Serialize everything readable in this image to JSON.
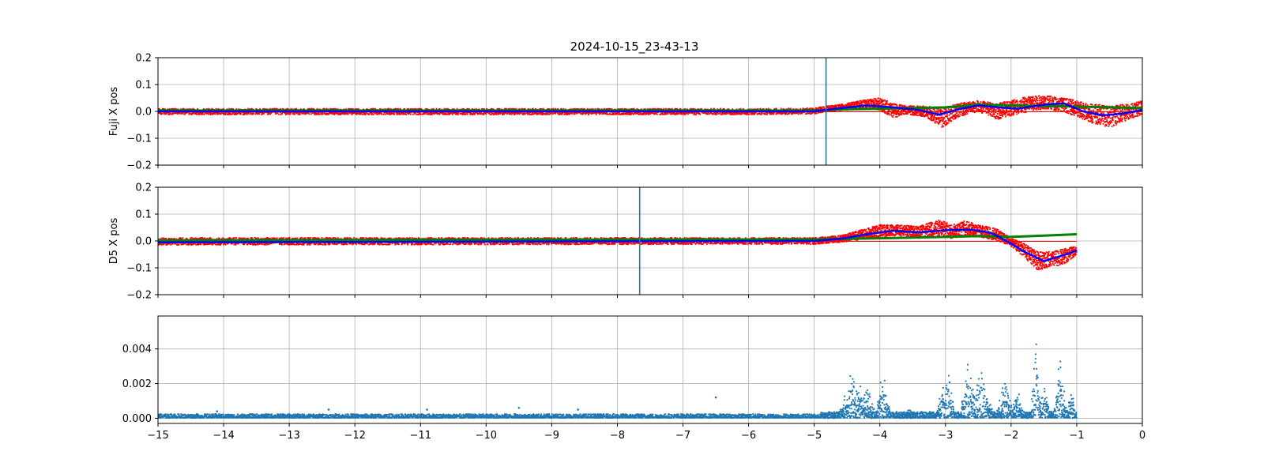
{
  "chart_data": {
    "type": "scatter",
    "title": "2024-10-15_23-43-13",
    "colors": {
      "raw": "#ff0000",
      "smooth": "#0000ff",
      "reference": "#008000",
      "marker": "#1f77b4",
      "scatter": "#1f77b4",
      "grid": "#b0b0b0"
    },
    "x_axis": {
      "xlim": [
        -15,
        0
      ],
      "ticks": [
        -15,
        -14,
        -13,
        -12,
        -11,
        -10,
        -9,
        -8,
        -7,
        -6,
        -5,
        -4,
        -3,
        -2,
        -1,
        0
      ],
      "tick_labels": [
        "−15",
        "−14",
        "−13",
        "−12",
        "−11",
        "−10",
        "−9",
        "−8",
        "−7",
        "−6",
        "−5",
        "−4",
        "−3",
        "−2",
        "−1",
        "0"
      ]
    },
    "panels": [
      {
        "id": "fuji",
        "ylabel": "Fuji X pos",
        "ylim": [
          -0.2,
          0.2
        ],
        "yticks": [
          0.2,
          0.1,
          0.0,
          -0.1,
          -0.2
        ],
        "ytick_labels": [
          "0.2",
          "0.1",
          "0.0",
          "−0.1",
          "−0.2"
        ],
        "show_x_tick_labels": false,
        "vline_x": -4.82,
        "x_end": 0,
        "raw_series": {
          "name": "raw (red)",
          "envelope": [
            {
              "x": -15.0,
              "lo": -0.012,
              "hi": 0.01
            },
            {
              "x": -6.0,
              "lo": -0.012,
              "hi": 0.01
            },
            {
              "x": -5.0,
              "lo": -0.01,
              "hi": 0.012
            },
            {
              "x": -4.8,
              "lo": 0.0,
              "hi": 0.02
            },
            {
              "x": -4.5,
              "lo": 0.005,
              "hi": 0.03
            },
            {
              "x": -4.3,
              "lo": 0.01,
              "hi": 0.04
            },
            {
              "x": -4.0,
              "lo": 0.005,
              "hi": 0.05
            },
            {
              "x": -3.8,
              "lo": -0.025,
              "hi": 0.03
            },
            {
              "x": -3.6,
              "lo": -0.01,
              "hi": 0.02
            },
            {
              "x": -3.3,
              "lo": -0.02,
              "hi": 0.02
            },
            {
              "x": -3.05,
              "lo": -0.06,
              "hi": 0.01
            },
            {
              "x": -2.8,
              "lo": -0.02,
              "hi": 0.03
            },
            {
              "x": -2.5,
              "lo": 0.0,
              "hi": 0.04
            },
            {
              "x": -2.2,
              "lo": -0.03,
              "hi": 0.03
            },
            {
              "x": -1.9,
              "lo": -0.01,
              "hi": 0.05
            },
            {
              "x": -1.5,
              "lo": 0.01,
              "hi": 0.06
            },
            {
              "x": -1.2,
              "lo": 0.0,
              "hi": 0.05
            },
            {
              "x": -0.8,
              "lo": -0.04,
              "hi": 0.03
            },
            {
              "x": -0.5,
              "lo": -0.06,
              "hi": 0.02
            },
            {
              "x": -0.2,
              "lo": -0.03,
              "hi": 0.03
            },
            {
              "x": 0.0,
              "lo": -0.01,
              "hi": 0.04
            }
          ]
        },
        "smooth_series": {
          "name": "smoothed (blue)",
          "points": [
            {
              "x": -15,
              "y": 0.0
            },
            {
              "x": -5,
              "y": 0.0
            },
            {
              "x": -4.6,
              "y": 0.012
            },
            {
              "x": -4.2,
              "y": 0.022
            },
            {
              "x": -3.8,
              "y": 0.015
            },
            {
              "x": -3.4,
              "y": 0.005
            },
            {
              "x": -3.1,
              "y": -0.012
            },
            {
              "x": -2.8,
              "y": 0.008
            },
            {
              "x": -2.5,
              "y": 0.022
            },
            {
              "x": -2.2,
              "y": 0.015
            },
            {
              "x": -1.9,
              "y": 0.01
            },
            {
              "x": -1.5,
              "y": 0.025
            },
            {
              "x": -1.2,
              "y": 0.03
            },
            {
              "x": -0.9,
              "y": 0.0
            },
            {
              "x": -0.6,
              "y": -0.015
            },
            {
              "x": -0.3,
              "y": -0.008
            },
            {
              "x": 0.0,
              "y": 0.005
            }
          ]
        },
        "reference_series": {
          "name": "reference (green)",
          "points": [
            {
              "x": -15,
              "y": 0.003
            },
            {
              "x": -5,
              "y": 0.003
            },
            {
              "x": -4.5,
              "y": 0.008
            },
            {
              "x": -4.0,
              "y": 0.01
            },
            {
              "x": -3.5,
              "y": 0.012
            },
            {
              "x": -3.0,
              "y": 0.015
            },
            {
              "x": -2.5,
              "y": 0.025
            },
            {
              "x": -2.0,
              "y": 0.022
            },
            {
              "x": -1.5,
              "y": 0.02
            },
            {
              "x": -1.0,
              "y": 0.018
            },
            {
              "x": -0.5,
              "y": 0.015
            },
            {
              "x": 0.0,
              "y": 0.012
            }
          ]
        }
      },
      {
        "id": "d5",
        "ylabel": "D5 X pos",
        "ylim": [
          -0.2,
          0.2
        ],
        "yticks": [
          0.2,
          0.1,
          0.0,
          -0.1,
          -0.2
        ],
        "ytick_labels": [
          "0.2",
          "0.1",
          "0.0",
          "−0.1",
          "−0.2"
        ],
        "show_x_tick_labels": false,
        "vline_x": -7.66,
        "x_end": -1.0,
        "raw_series": {
          "name": "raw (red)",
          "envelope": [
            {
              "x": -15.0,
              "lo": -0.015,
              "hi": 0.012
            },
            {
              "x": -5.0,
              "lo": -0.012,
              "hi": 0.012
            },
            {
              "x": -4.6,
              "lo": -0.005,
              "hi": 0.02
            },
            {
              "x": -4.3,
              "lo": 0.005,
              "hi": 0.04
            },
            {
              "x": -4.0,
              "lo": 0.015,
              "hi": 0.06
            },
            {
              "x": -3.7,
              "lo": 0.02,
              "hi": 0.06
            },
            {
              "x": -3.4,
              "lo": 0.01,
              "hi": 0.055
            },
            {
              "x": -3.1,
              "lo": 0.015,
              "hi": 0.08
            },
            {
              "x": -2.9,
              "lo": 0.01,
              "hi": 0.06
            },
            {
              "x": -2.7,
              "lo": 0.02,
              "hi": 0.075
            },
            {
              "x": -2.5,
              "lo": 0.015,
              "hi": 0.06
            },
            {
              "x": -2.2,
              "lo": 0.0,
              "hi": 0.045
            },
            {
              "x": -2.0,
              "lo": -0.02,
              "hi": 0.01
            },
            {
              "x": -1.8,
              "lo": -0.06,
              "hi": -0.01
            },
            {
              "x": -1.6,
              "lo": -0.11,
              "hi": -0.04
            },
            {
              "x": -1.4,
              "lo": -0.095,
              "hi": -0.04
            },
            {
              "x": -1.2,
              "lo": -0.09,
              "hi": -0.03
            },
            {
              "x": -1.0,
              "lo": -0.05,
              "hi": -0.02
            }
          ]
        },
        "smooth_series": {
          "name": "smoothed (blue)",
          "points": [
            {
              "x": -15,
              "y": -0.005
            },
            {
              "x": -5,
              "y": 0.0
            },
            {
              "x": -4.6,
              "y": 0.008
            },
            {
              "x": -4.2,
              "y": 0.025
            },
            {
              "x": -3.8,
              "y": 0.038
            },
            {
              "x": -3.4,
              "y": 0.032
            },
            {
              "x": -3.0,
              "y": 0.04
            },
            {
              "x": -2.6,
              "y": 0.042
            },
            {
              "x": -2.3,
              "y": 0.03
            },
            {
              "x": -2.0,
              "y": -0.01
            },
            {
              "x": -1.8,
              "y": -0.04
            },
            {
              "x": -1.5,
              "y": -0.075
            },
            {
              "x": -1.3,
              "y": -0.06
            },
            {
              "x": -1.1,
              "y": -0.045
            },
            {
              "x": -1.0,
              "y": -0.035
            }
          ]
        },
        "reference_series": {
          "name": "reference (green)",
          "points": [
            {
              "x": -15,
              "y": 0.002
            },
            {
              "x": -9.5,
              "y": 0.005
            },
            {
              "x": -5,
              "y": 0.006
            },
            {
              "x": -4.0,
              "y": 0.01
            },
            {
              "x": -3.0,
              "y": 0.015
            },
            {
              "x": -2.5,
              "y": 0.018
            },
            {
              "x": -2.0,
              "y": 0.015
            },
            {
              "x": -1.5,
              "y": 0.02
            },
            {
              "x": -1.0,
              "y": 0.025
            }
          ]
        }
      },
      {
        "id": "scatter",
        "ylabel": "",
        "ylim": [
          -0.0003,
          0.0059
        ],
        "yticks": [
          0.004,
          0.002,
          0.0
        ],
        "ytick_labels": [
          "0.004",
          "0.002",
          "0.000"
        ],
        "show_x_tick_labels": true,
        "x_end": -1.0,
        "scatter_series": {
          "name": "blue points",
          "baseline": 0.00012,
          "outliers": [
            {
              "x": -6.5,
              "y": 0.0012
            },
            {
              "x": -9.5,
              "y": 0.0006
            },
            {
              "x": -12.4,
              "y": 0.0005
            },
            {
              "x": -14.1,
              "y": 0.0004
            },
            {
              "x": -10.9,
              "y": 0.0005
            },
            {
              "x": -8.6,
              "y": 0.0005
            }
          ],
          "bursts": [
            {
              "x": -4.4,
              "w": 0.25,
              "peak": 0.0032
            },
            {
              "x": -4.2,
              "w": 0.15,
              "peak": 0.0024
            },
            {
              "x": -3.95,
              "w": 0.12,
              "peak": 0.0033
            },
            {
              "x": -3.55,
              "w": 0.2,
              "peak": 0.0006
            },
            {
              "x": -3.05,
              "w": 0.1,
              "peak": 0.0025
            },
            {
              "x": -2.95,
              "w": 0.1,
              "peak": 0.0036
            },
            {
              "x": -2.65,
              "w": 0.15,
              "peak": 0.0038
            },
            {
              "x": -2.45,
              "w": 0.2,
              "peak": 0.003
            },
            {
              "x": -2.1,
              "w": 0.15,
              "peak": 0.0028
            },
            {
              "x": -1.9,
              "w": 0.12,
              "peak": 0.002
            },
            {
              "x": -1.62,
              "w": 0.08,
              "peak": 0.0058
            },
            {
              "x": -1.5,
              "w": 0.12,
              "peak": 0.0025
            },
            {
              "x": -1.25,
              "w": 0.12,
              "peak": 0.0043
            },
            {
              "x": -1.08,
              "w": 0.08,
              "peak": 0.002
            }
          ]
        }
      }
    ]
  }
}
